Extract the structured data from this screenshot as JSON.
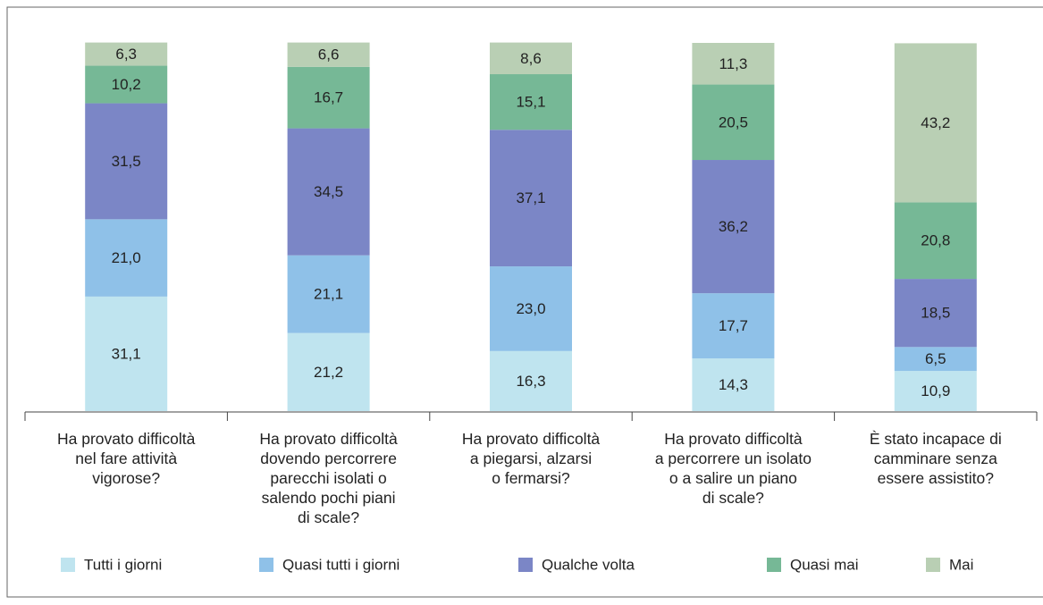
{
  "chart_data": {
    "type": "stacked_bar",
    "categories": [
      "Ha provato difficoltà\nnel fare attività\nvigorose?",
      "Ha provato difficoltà\ndovendo percorrere\nparecchi isolati o\nsalendo pochi piani\ndi scale?",
      "Ha provato difficoltà\na piegarsi, alzarsi\no fermarsi?",
      "Ha provato difficoltà\na percorrere un isolato\no a salire un piano\ndi scale?",
      "È stato incapace di\ncamminare senza\nessere assistito?"
    ],
    "series": [
      {
        "name": "Tutti i giorni",
        "color": "#bfe4ef",
        "values": [
          31.1,
          21.2,
          16.3,
          14.3,
          10.9
        ],
        "value_labels": [
          "31,1",
          "21,2",
          "16,3",
          "14,3",
          "10,9"
        ]
      },
      {
        "name": "Quasi tutti i giorni",
        "color": "#8fc1e8",
        "values": [
          21.0,
          21.1,
          23.0,
          17.7,
          6.5
        ],
        "value_labels": [
          "21,0",
          "21,1",
          "23,0",
          "17,7",
          "6,5"
        ]
      },
      {
        "name": "Qualche volta",
        "color": "#7b86c6",
        "values": [
          31.5,
          34.5,
          37.1,
          36.2,
          18.5
        ],
        "value_labels": [
          "31,5",
          "34,5",
          "37,1",
          "36,2",
          "18,5"
        ]
      },
      {
        "name": "Quasi mai",
        "color": "#76b896",
        "values": [
          10.2,
          16.7,
          15.1,
          20.5,
          20.8
        ],
        "value_labels": [
          "10,2",
          "16,7",
          "15,1",
          "20,5",
          "20,8"
        ]
      },
      {
        "name": "Mai",
        "color": "#b9cfb4",
        "values": [
          6.3,
          6.6,
          8.6,
          11.3,
          43.2
        ],
        "value_labels": [
          "6,3",
          "6,6",
          "8,6",
          "11,3",
          "43,2"
        ]
      }
    ],
    "legend": "bottom"
  }
}
